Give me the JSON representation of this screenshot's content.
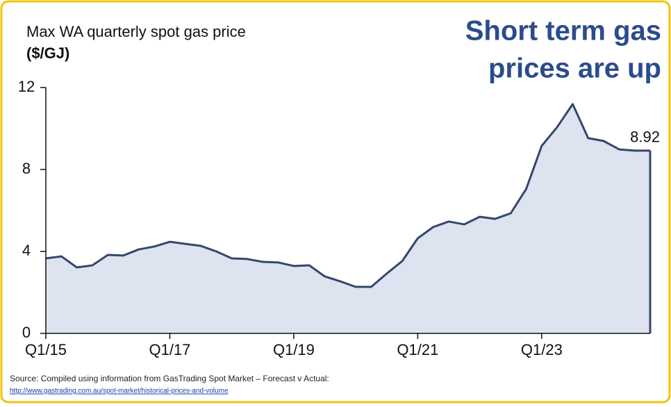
{
  "chart_data": {
    "type": "area",
    "title": "Max WA quarterly spot gas price",
    "subtitle": "($/GJ)",
    "headline": [
      "Short term gas",
      "prices are up"
    ],
    "source": "Source: Compiled using information from GasTrading Spot Market – Forecast v Actual:",
    "source_url": "http://www.gastrading.com.au/spot-market/historical-prices-and-volume",
    "categories": [
      "Q1/15",
      null,
      null,
      null,
      null,
      null,
      null,
      null,
      "Q1/17",
      null,
      null,
      null,
      null,
      null,
      null,
      null,
      "Q1/19",
      null,
      null,
      null,
      null,
      null,
      null,
      null,
      "Q1/21",
      null,
      null,
      null,
      null,
      null,
      null,
      null,
      "Q1/23",
      null,
      null,
      null,
      null,
      null,
      null,
      null
    ],
    "series": [
      {
        "name": "Max WA quarterly spot gas price",
        "color": "#34476b",
        "fill": "#dde3ef",
        "values": [
          3.66,
          3.76,
          3.22,
          3.32,
          3.83,
          3.8,
          4.1,
          4.24,
          4.47,
          4.37,
          4.27,
          4.0,
          3.66,
          3.63,
          3.49,
          3.46,
          3.29,
          3.32,
          2.78,
          2.54,
          2.27,
          2.27,
          2.92,
          3.53,
          4.64,
          5.19,
          5.46,
          5.32,
          5.69,
          5.59,
          5.86,
          7.05,
          9.15,
          10.07,
          11.19,
          9.53,
          9.39,
          8.98,
          8.92,
          8.92
        ]
      }
    ],
    "label_last": true,
    "ylim": [
      0,
      12
    ],
    "yticks": [
      0,
      4,
      8,
      12
    ],
    "border_color": "#f2c20f",
    "headline_color": "#2b4c8c"
  }
}
